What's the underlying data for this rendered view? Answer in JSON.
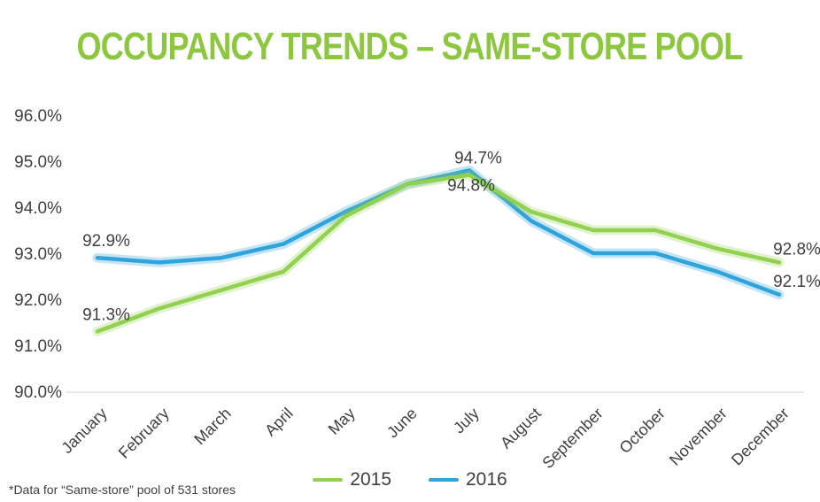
{
  "title": "OCCUPANCY TRENDS – SAME-STORE POOL",
  "footnote": "*Data for “Same-store” pool of 531 stores",
  "legend": [
    {
      "label": "2015",
      "color": "#92d050"
    },
    {
      "label": "2016",
      "color": "#2fa3dc"
    }
  ],
  "chart_data": {
    "type": "line",
    "title": "OCCUPANCY TRENDS – SAME-STORE POOL",
    "categories": [
      "January",
      "February",
      "March",
      "April",
      "May",
      "June",
      "July",
      "August",
      "September",
      "October",
      "November",
      "December"
    ],
    "series": [
      {
        "name": "2015",
        "color": "#92d050",
        "values": [
          91.3,
          91.8,
          92.2,
          92.6,
          93.8,
          94.5,
          94.7,
          93.9,
          93.5,
          93.5,
          93.1,
          92.8
        ]
      },
      {
        "name": "2016",
        "color": "#2fa3dc",
        "values": [
          92.9,
          92.8,
          92.9,
          93.2,
          93.9,
          94.5,
          94.8,
          93.7,
          93.0,
          93.0,
          92.6,
          92.1
        ]
      }
    ],
    "ylim": [
      90.0,
      96.0
    ],
    "ytick_step": 1.0,
    "ytick_format": "percent1",
    "grid": "off",
    "legend_position": "bottom-center",
    "annotations": [
      {
        "text": "91.3%",
        "series": "2015",
        "index": 0,
        "position": "above"
      },
      {
        "text": "92.9%",
        "series": "2016",
        "index": 0,
        "position": "above"
      },
      {
        "text": "94.7%",
        "series": "2015",
        "index": 6,
        "position": "above"
      },
      {
        "text": "94.8%",
        "series": "2016",
        "index": 6,
        "position": "below"
      },
      {
        "text": "92.8%",
        "series": "2015",
        "index": 11,
        "position": "right"
      },
      {
        "text": "92.1%",
        "series": "2016",
        "index": 11,
        "position": "right"
      }
    ],
    "text_color": "#3f3f3f"
  }
}
